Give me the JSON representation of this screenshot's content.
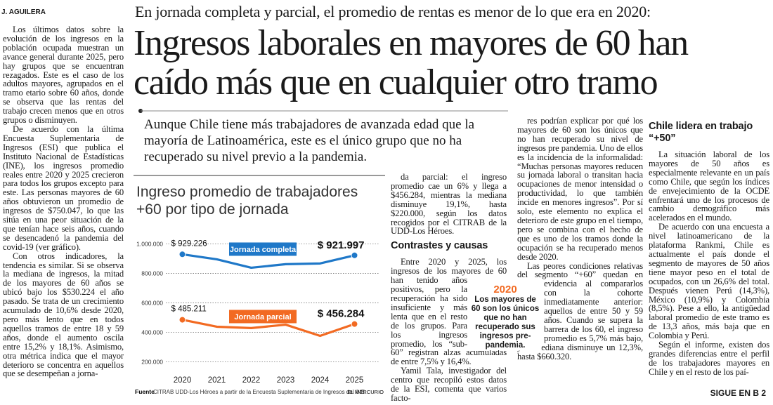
{
  "byline": "J. AGUILERA",
  "kicker": "En jornada completa y parcial, el promedio de rentas es menor de lo que era en 2020:",
  "headline_lines": [
    "Ingresos laborales en mayores de 60 han",
    "caído más que en cualquier otro tramo"
  ],
  "deck": "Aunque Chile tiene más trabajadores de avanzada edad que la mayoría de Latinoamérica, este es el único grupo que no ha recuperado su nivel previo a la pandemia.",
  "columns": [
    {
      "blocks": [
        {
          "p": "Los últimos datos sobre la evolución de los ingresos en la población ocupada muestran un avance general durante 2025, pero hay grupos que se encuentran rezagados. Este es el caso de los adultos mayores, agrupados en el tramo etario sobre 60 años, donde se observa que las rentas del trabajo crecen menos que en otros grupos o disminuyen."
        },
        {
          "p": "De acuerdo con la última Encuesta Suplementaria de Ingresos (ESI) que publica el Instituto Nacional de Estadísticas (INE), los ingresos promedio reales entre 2020 y 2025 crecieron para todos los grupos excepto para este. Las personas mayores de 60 años obtuvieron un promedio de ingresos de $750.047, lo que las sitúa en una peor situación de la que tenían hace seis años, cuando se desencadenó la pandemia del covid-19 (ver gráfico)."
        },
        {
          "p": "Con otros indicadores, la tendencia es similar. Si se observa la mediana de ingresos, la mitad de los mayores de 60 años se ubicó bajo los $530.224 el año pasado. Se trata de un crecimiento acumulado de 10,6% desde 2020, pero más lento que en todos aquellos tramos de entre 18 y 59 años, donde el aumento oscila entre 15,2% y 18,1%. Asimismo, otra métrica indica que el mayor deterioro se concentra en aquellos que se desempeñan a jorna-"
        }
      ]
    },
    {
      "blocks": [
        {
          "p": "da parcial: el ingreso promedio cae un 6% y llega a $456.284, mientras la mediana disminuye 19,1%, hasta $220.000, según los datos recogidos por el CITRAB de la UDD-Los Héroes."
        },
        {
          "h": "Contrastes y causas"
        },
        {
          "p": "Entre 2020 y 2025, los ingresos de los mayores de 60 han tenido años positivos, pero la recuperación ha sido insuficiente y más lenta que en el resto de los grupos. Para los ingresos promedio, los “sub-60” registran alzas acumuladas de entre 7,5% y 16,4%."
        },
        {
          "p": "Yamil Tala, investigador del centro que recopiló estos datos de la ESI, comenta que varios facto-"
        }
      ]
    },
    {
      "blocks": [
        {
          "p": "res podrían explicar por qué los mayores de 60 son los únicos que no han recuperado su nivel de ingresos pre pandemia. Uno de ellos es la incidencia de la informalidad: “Muchas personas mayores reducen su jornada laboral o transitan hacia ocupaciones de menor intensidad o productividad, lo que también incide en menores ingresos”. Por sí solo, este elemento no explica el deterioro de este grupo en el tiempo, pero se combina con el hecho de que es uno de los tramos donde la ocupación se ha recuperado menos desde 2020."
        },
        {
          "p": "Las peores condiciones relativas del segmento “+60” quedan en evidencia al compararlos con la cohorte inmediatamente anterior: aquellos de entre 50 y 59 años. Cuando se supera la barrera de los 60, el ingreso promedio es 5,7% más bajo, y la mediana disminuye un 12,3%, hasta $660.320."
        }
      ]
    },
    {
      "blocks": [
        {
          "h": "Chile lidera en trabajo “+50”"
        },
        {
          "p": "La situación laboral de los mayores de 50 años es especialmente relevante en un país como Chile, que según los índices de envejecimiento de la OCDE enfrentará uno de los procesos de cambio demográfico más acelerados en el mundo."
        },
        {
          "p": "De acuerdo con una encuesta a nivel latinoamericano de la plataforma Rankmi, Chile es actualmente el país donde el segmento de mayores de 50 años tiene mayor peso en el total de ocupados, con un 26,6% del total. Después vienen Perú (14,3%), México (10,9%) y Colombia (8,5%). Pese a ello, la antigüedad laboral promedio de este tramo es de 13,3 años, más baja que en Colombia y Perú."
        },
        {
          "p": "Según el informe, existen dos grandes diferencias entre el perfil de los trabajadores mayores en Chile y en el resto de los paí-"
        }
      ]
    }
  ],
  "callout": {
    "title": "2020",
    "text": "Los mayores de 60 son los únicos que no han recuperado sus ingresos pre-pandemia."
  },
  "continued": "SIGUE EN B 2",
  "chart_data": {
    "type": "line",
    "title": "Ingreso promedio de trabajadores +60 por tipo de jornada",
    "categories": [
      "2020",
      "2021",
      "2022",
      "2023",
      "2024",
      "2025"
    ],
    "series": [
      {
        "name": "Jornada completa",
        "color": "#1f78c8",
        "values": [
          929226,
          895000,
          838000,
          862000,
          867000,
          921997
        ],
        "value_labels": [
          "$ 929.226",
          null,
          null,
          null,
          null,
          "$ 921.997"
        ]
      },
      {
        "name": "Jornada parcial",
        "color": "#f26a22",
        "values": [
          485211,
          438000,
          429000,
          452000,
          376000,
          456284
        ],
        "value_labels": [
          "$ 485.211",
          null,
          null,
          null,
          null,
          "$ 456.284"
        ]
      }
    ],
    "ylim": [
      150000,
      1040000
    ],
    "yticks": [
      {
        "value": 200000,
        "label": "200.000"
      },
      {
        "value": 400000,
        "label": "400.000"
      },
      {
        "value": 600000,
        "label": "600.000"
      },
      {
        "value": 800000,
        "label": "800.000"
      },
      {
        "value": 1000000,
        "label": "1.000.000"
      }
    ],
    "grid": true,
    "source_label": "Fuente",
    "source": "CITRAB UDD-Los Héroes a partir de la Encuesta Suplementaria de Ingresos del INE",
    "credit": "EL MERCURIO"
  }
}
